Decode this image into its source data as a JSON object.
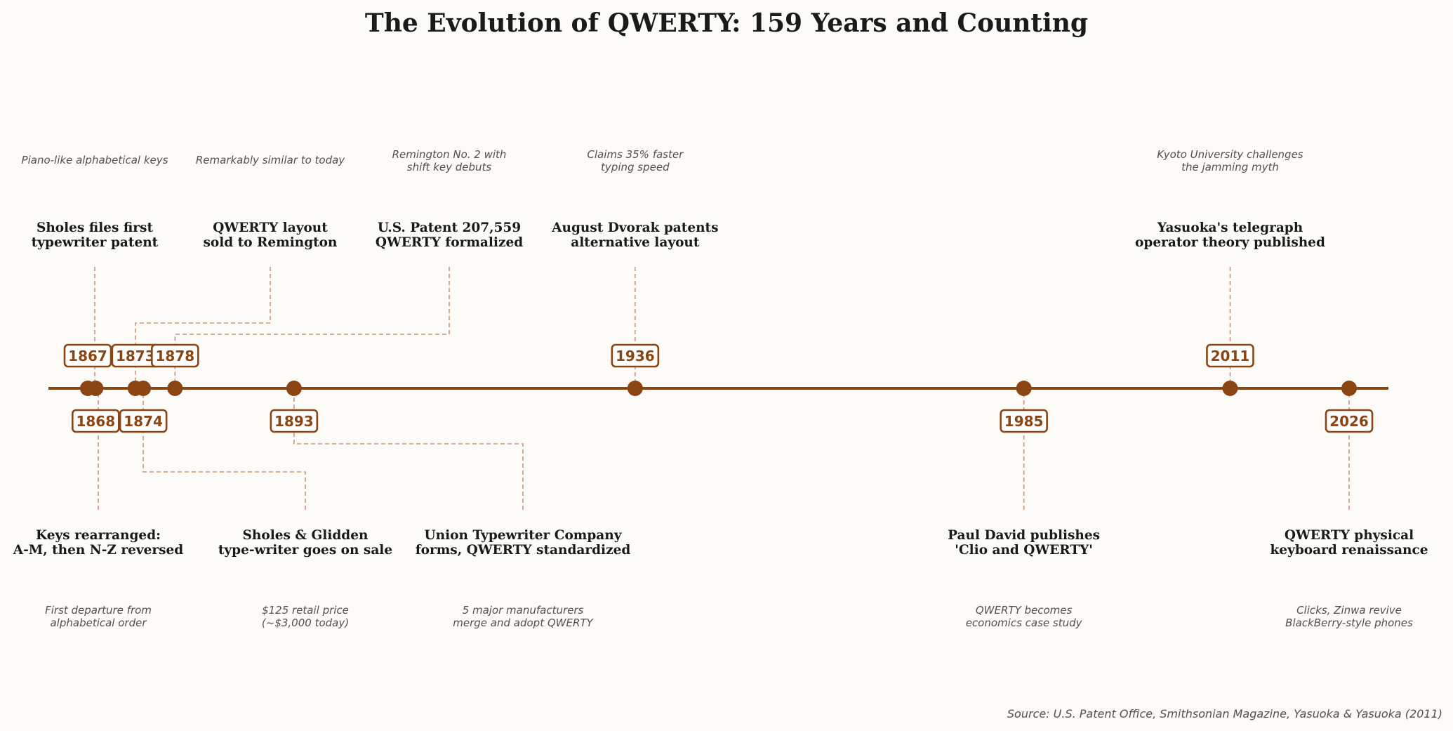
{
  "title": "The Evolution of QWERTY: 159 Years and Counting",
  "source": "Source: U.S. Patent Office, Smithsonian Magazine, Yasuoka & Yasuoka (2011)",
  "colors": {
    "accent": "#8b4513",
    "connector": "#c9967a",
    "background": "#fcfbf8",
    "text": "#1a1a1a",
    "subtext": "#555049"
  },
  "chart_data": {
    "type": "timeline",
    "title": "The Evolution of QWERTY: 159 Years and Counting",
    "xlim": [
      1867,
      2026
    ],
    "events": [
      {
        "year": "1867",
        "position": "above",
        "title": [
          "Sholes files first",
          "typewriter patent"
        ],
        "subtitle": [
          "Piano-like alphabetical keys"
        ]
      },
      {
        "year": "1868",
        "position": "below",
        "title": [
          "Keys rearranged:",
          "A-M, then N-Z reversed"
        ],
        "subtitle": [
          "First departure from",
          "alphabetical order"
        ]
      },
      {
        "year": "1873",
        "position": "above",
        "title": [
          "QWERTY layout",
          "sold to Remington"
        ],
        "subtitle": [
          "Remarkably similar to today"
        ]
      },
      {
        "year": "1874",
        "position": "below",
        "title": [
          "Sholes & Glidden",
          "type-writer goes on sale"
        ],
        "subtitle": [
          "$125 retail price",
          "(~$3,000 today)"
        ]
      },
      {
        "year": "1878",
        "position": "above",
        "title": [
          "U.S. Patent 207,559",
          "QWERTY formalized"
        ],
        "subtitle": [
          "Remington No. 2 with",
          "shift key debuts"
        ]
      },
      {
        "year": "1893",
        "position": "below",
        "title": [
          "Union Typewriter Company",
          "forms, QWERTY standardized"
        ],
        "subtitle": [
          "5 major manufacturers",
          "merge and adopt QWERTY"
        ]
      },
      {
        "year": "1936",
        "position": "above",
        "title": [
          "August Dvorak patents",
          "alternative layout"
        ],
        "subtitle": [
          "Claims 35% faster",
          "typing speed"
        ]
      },
      {
        "year": "1985",
        "position": "below",
        "title": [
          "Paul David publishes",
          "'Clio and QWERTY'"
        ],
        "subtitle": [
          "QWERTY becomes",
          "economics case study"
        ]
      },
      {
        "year": "2011",
        "position": "above",
        "title": [
          "Yasuoka's telegraph",
          "operator theory published"
        ],
        "subtitle": [
          "Kyoto University challenges",
          "the jamming myth"
        ]
      },
      {
        "year": "2026",
        "position": "below",
        "title": [
          "QWERTY physical",
          "keyboard renaissance"
        ],
        "subtitle": [
          "Clicks, Zinwa revive",
          "BlackBerry-style phones"
        ]
      }
    ]
  }
}
